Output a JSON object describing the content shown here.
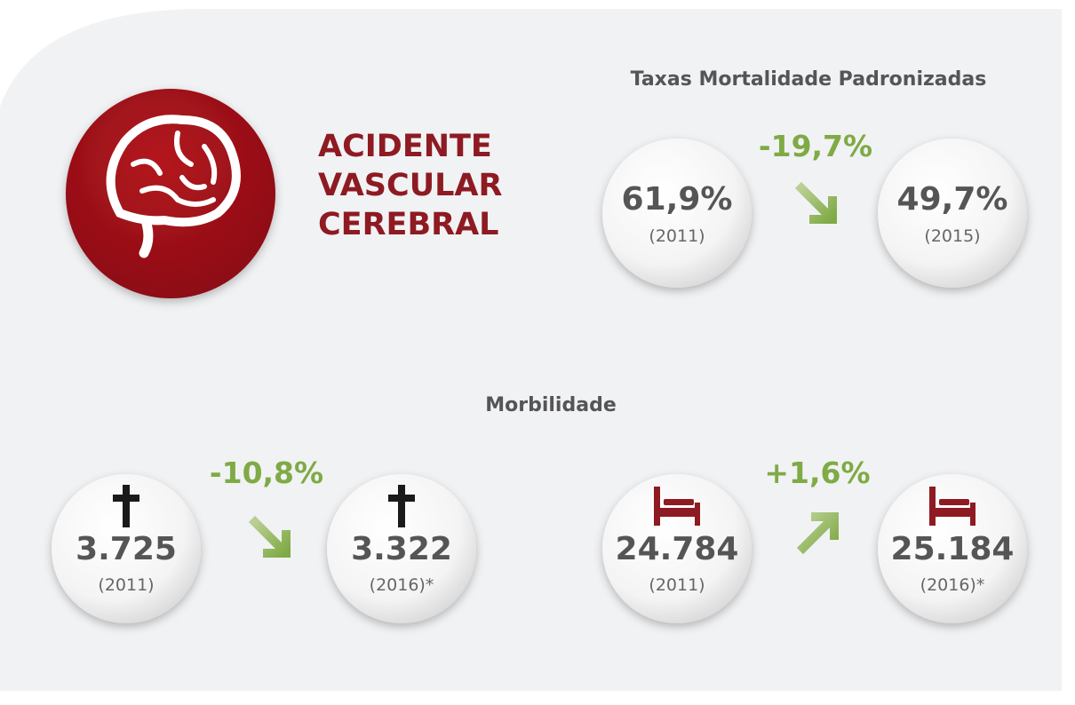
{
  "header": {
    "title_lines": [
      "ACIDENTE",
      "VASCULAR",
      "CEREBRAL"
    ]
  },
  "mortality": {
    "title": "Taxas Mortalidade Padronizadas",
    "change": "-19,7%",
    "items": [
      {
        "value": "61,9%",
        "year": "(2011)"
      },
      {
        "value": "49,7%",
        "year": "(2015)"
      }
    ]
  },
  "morbidity": {
    "title": "Morbilidade",
    "deaths": {
      "change": "-10,8%",
      "items": [
        {
          "value": "3.725",
          "year": "(2011)"
        },
        {
          "value": "3.322",
          "year": "(2016)*"
        }
      ]
    },
    "hospitalizations": {
      "change": "+1,6%",
      "items": [
        {
          "value": "24.784",
          "year": "(2011)"
        },
        {
          "value": "25.184",
          "year": "(2016)*"
        }
      ]
    }
  }
}
